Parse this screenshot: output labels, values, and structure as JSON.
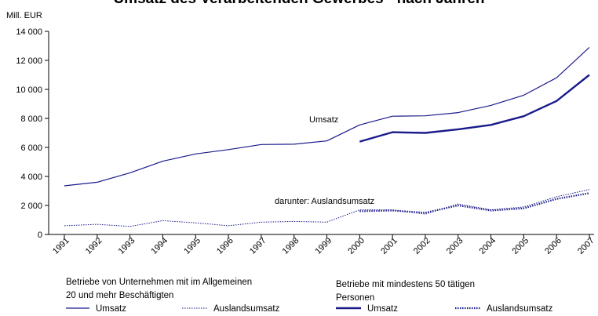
{
  "chart_data": {
    "type": "line",
    "title": "Umsatz des Verarbeitenden Gewerbes - nach Jahren",
    "ylabel": "Mill. EUR",
    "xlabel": "",
    "ylim": [
      0,
      14000
    ],
    "yticks": [
      0,
      2000,
      4000,
      6000,
      8000,
      10000,
      12000,
      14000
    ],
    "ytick_labels": [
      "0",
      "2 000",
      "4 000",
      "6 000",
      "8 000",
      "10 000",
      "12 000",
      "14 000"
    ],
    "categories": [
      "1991",
      "1992",
      "1993",
      "1994",
      "1995",
      "1996",
      "1997",
      "1998",
      "1999",
      "2000",
      "2001",
      "2002",
      "2003",
      "2004",
      "2005",
      "2006",
      "2007"
    ],
    "grid": false,
    "legend_position": "bottom",
    "annotations": [
      {
        "text": "Umsatz",
        "anchor": "2000"
      },
      {
        "text": "darunter: Auslandsumsatz",
        "anchor": "1999"
      }
    ],
    "legend_groups": [
      {
        "title_lines": [
          "Betriebe von Unternehmen mit im Allgemeinen",
          "20 und mehr Beschäftigten"
        ]
      },
      {
        "title_lines": [
          "Betriebe mit mindestens 50 tätigen",
          "Personen"
        ]
      }
    ],
    "series": [
      {
        "name": "Umsatz",
        "group": 0,
        "style": "thin-solid",
        "values": [
          3350,
          3600,
          4250,
          5050,
          5550,
          5850,
          6200,
          6220,
          6450,
          7550,
          8150,
          8180,
          8400,
          8900,
          9600,
          10800,
          12900
        ]
      },
      {
        "name": "Auslandsumsatz",
        "group": 0,
        "style": "thin-dotted",
        "values": [
          600,
          700,
          550,
          950,
          800,
          600,
          850,
          900,
          850,
          1700,
          1700,
          1400,
          2100,
          1700,
          1900,
          2600,
          3100
        ]
      },
      {
        "name": "Umsatz",
        "group": 1,
        "style": "thick-solid",
        "values": [
          null,
          null,
          null,
          null,
          null,
          null,
          null,
          null,
          null,
          6400,
          7050,
          7000,
          7250,
          7550,
          8150,
          9200,
          11000
        ]
      },
      {
        "name": "Auslandsumsatz",
        "group": 1,
        "style": "thick-dotted",
        "values": [
          null,
          null,
          null,
          null,
          null,
          null,
          null,
          null,
          null,
          1600,
          1650,
          1500,
          2000,
          1650,
          1800,
          2450,
          2850
        ]
      }
    ],
    "colors": {
      "line": "#1a1a8c",
      "text": "#000000",
      "axis": "#000000"
    }
  }
}
